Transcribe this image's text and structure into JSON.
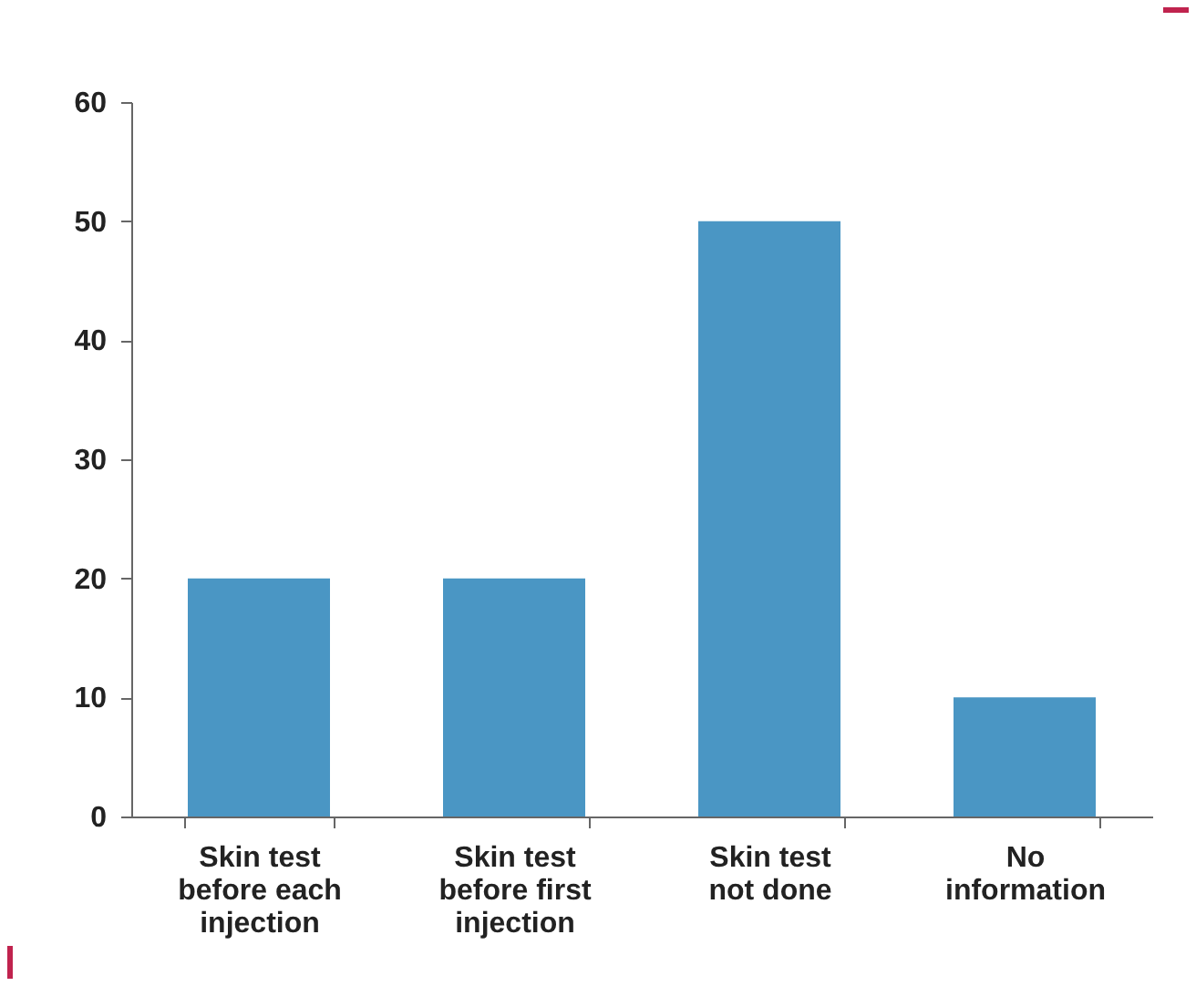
{
  "chart_data": {
    "type": "bar",
    "categories": [
      "Skin test before each injection",
      "Skin test before first injection",
      "Skin test not done",
      "No information"
    ],
    "values": [
      20,
      20,
      50,
      10
    ],
    "color": "#4a96c4",
    "ylim": [
      0,
      60
    ],
    "yticks": [
      0,
      10,
      20,
      30,
      40,
      50,
      60
    ],
    "grid": false
  }
}
